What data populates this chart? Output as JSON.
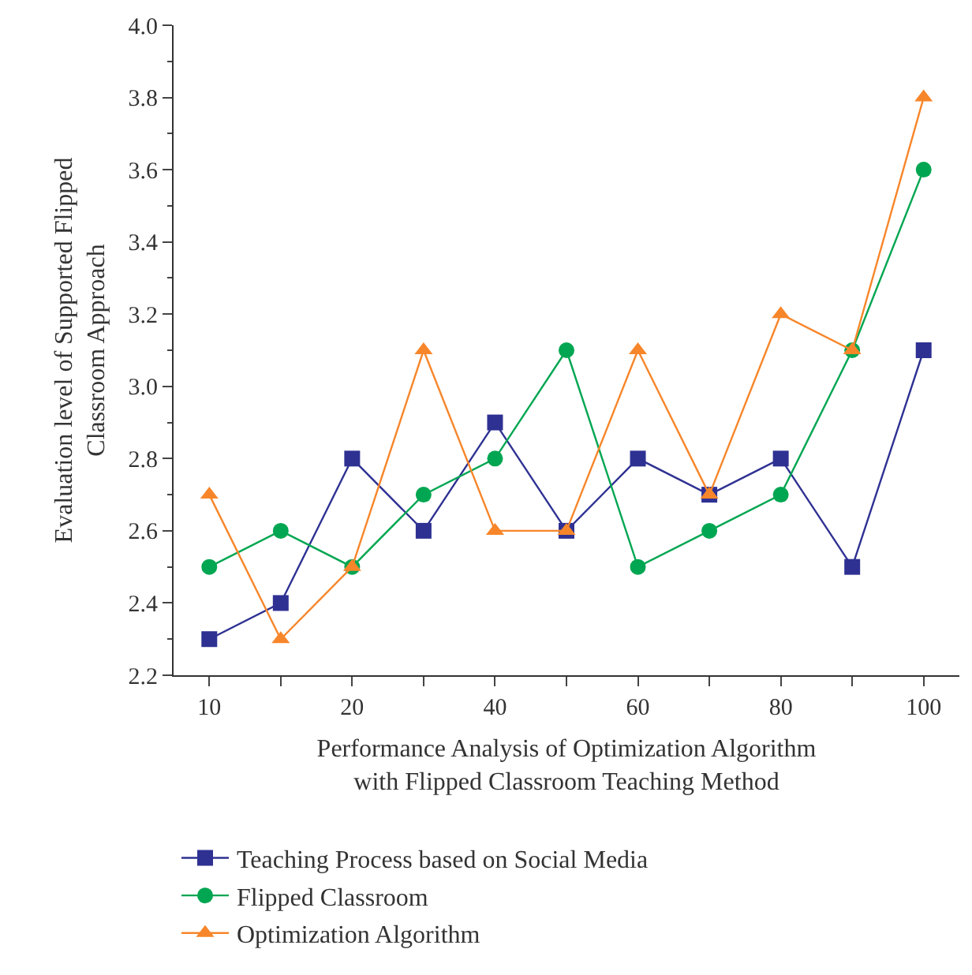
{
  "chart_data": {
    "type": "line",
    "xlabel": "Performance Analysis of Optimization Algorithm\nwith Flipped Classroom Teaching Method",
    "ylabel": "Evaluation level of Supported Flipped\nClassroom Approach",
    "categories": [
      "10",
      null,
      "20",
      null,
      "40",
      null,
      "60",
      null,
      "80",
      null,
      "100"
    ],
    "ylim": [
      2.2,
      4.0
    ],
    "yticks": [
      2.2,
      2.4,
      2.6,
      2.8,
      {
        "value": 3,
        "label": "3.0"
      },
      3.2,
      3.4,
      3.6,
      3.8,
      {
        "value": 4,
        "label": "4.0"
      }
    ],
    "legend": "bottom",
    "series": [
      {
        "name": "Teaching Process based on Social Media",
        "color": "#2e3192",
        "marker": "square",
        "values": [
          2.3,
          2.4,
          2.8,
          2.6,
          2.9,
          2.6,
          2.8,
          2.7,
          2.8,
          2.5,
          3.1
        ]
      },
      {
        "name": "Flipped Classroom",
        "color": "#00a651",
        "marker": "circle",
        "values": [
          2.5,
          2.6,
          2.5,
          2.7,
          2.8,
          3.1,
          2.5,
          2.6,
          2.7,
          3.1,
          3.6
        ]
      },
      {
        "name": "Optimization Algorithm",
        "color": "#f7862a",
        "marker": "triangle",
        "values": [
          2.7,
          2.3,
          2.5,
          3.1,
          2.6,
          2.6,
          3.1,
          2.7,
          3.2,
          3.1,
          3.8
        ]
      }
    ]
  }
}
